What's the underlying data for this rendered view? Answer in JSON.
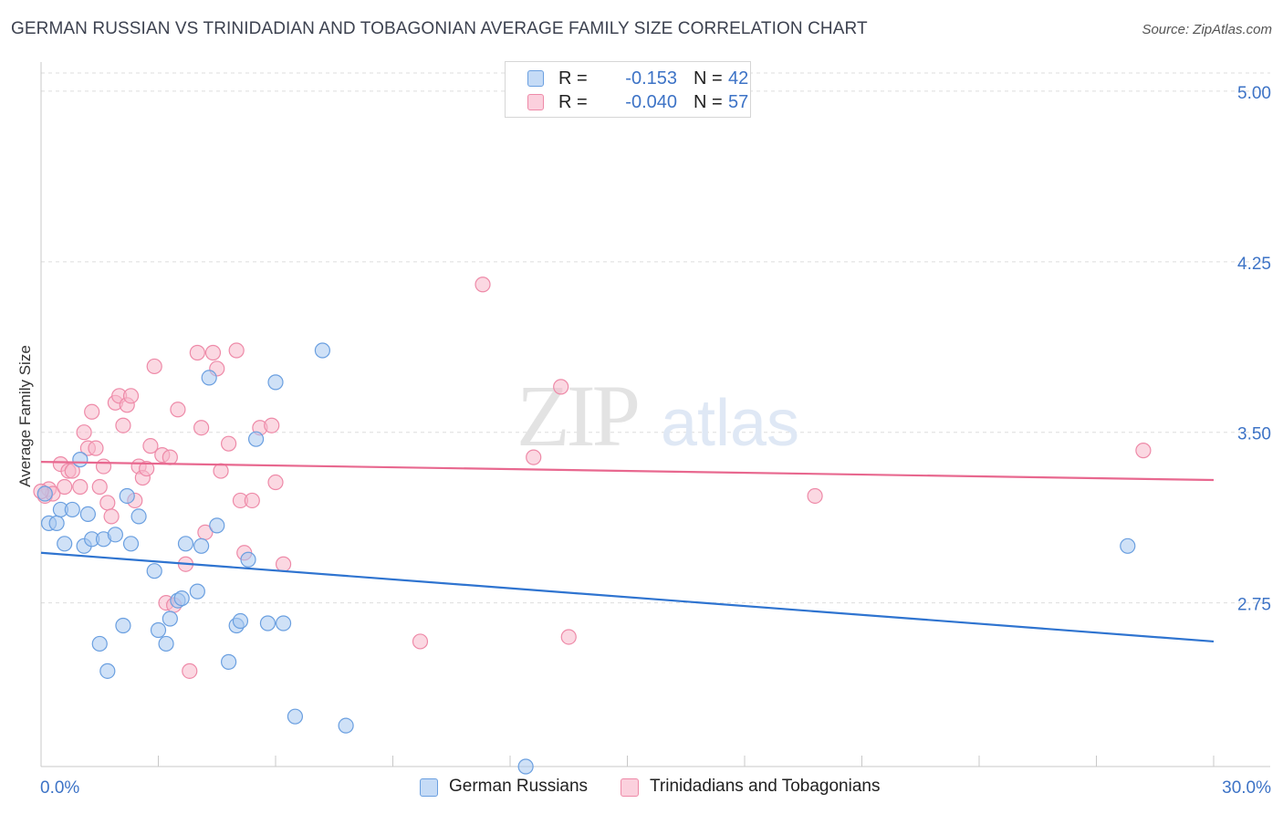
{
  "title": "GERMAN RUSSIAN VS TRINIDADIAN AND TOBAGONIAN AVERAGE FAMILY SIZE CORRELATION CHART",
  "source": "Source: ZipAtlas.com",
  "watermark": {
    "zip": "ZIP",
    "atlas": "atlas"
  },
  "colors": {
    "blue_fill": "#a8c8f0",
    "blue_stroke": "#6a9fe0",
    "blue_line": "#2f74d0",
    "pink_fill": "#f7b8cb",
    "pink_stroke": "#ee8aa8",
    "pink_line": "#e8688f",
    "axis_text": "#3d73c6",
    "grid": "#dddddd"
  },
  "legend": {
    "rows": [
      {
        "r_label": "R =",
        "r_value": "-0.153",
        "n_label": "N =",
        "n_value": "42",
        "color": "blue"
      },
      {
        "r_label": "R =",
        "r_value": "-0.040",
        "n_label": "N =",
        "n_value": "57",
        "color": "pink"
      }
    ]
  },
  "bottom_legend": [
    {
      "label": "German Russians",
      "color": "blue"
    },
    {
      "label": "Trinidadians and Tobagonians",
      "color": "pink"
    }
  ],
  "chart_data": {
    "type": "scatter",
    "title": "GERMAN RUSSIAN VS TRINIDADIAN AND TOBAGONIAN AVERAGE FAMILY SIZE CORRELATION CHART",
    "xlabel": "",
    "ylabel": "Average Family Size",
    "xlim": [
      0,
      30
    ],
    "ylim": [
      2.03,
      5.08
    ],
    "x_tick_labels": [
      "0.0%",
      "30.0%"
    ],
    "y_ticks": [
      2.75,
      3.5,
      4.25,
      5.0
    ],
    "y_tick_labels": [
      "2.75",
      "3.50",
      "4.25",
      "5.00"
    ],
    "grid": true,
    "legend_position": "top-center",
    "series": [
      {
        "name": "German Russians",
        "color": "blue",
        "trend": {
          "x": [
            0,
            30
          ],
          "y": [
            2.97,
            2.58
          ]
        },
        "points": [
          [
            0.2,
            3.1
          ],
          [
            0.4,
            3.1
          ],
          [
            0.5,
            3.16
          ],
          [
            0.6,
            3.01
          ],
          [
            0.8,
            3.16
          ],
          [
            1.0,
            3.38
          ],
          [
            1.1,
            3.0
          ],
          [
            1.2,
            3.14
          ],
          [
            1.3,
            3.03
          ],
          [
            1.5,
            2.57
          ],
          [
            1.6,
            3.03
          ],
          [
            1.7,
            2.45
          ],
          [
            1.9,
            3.05
          ],
          [
            2.1,
            2.65
          ],
          [
            2.2,
            3.22
          ],
          [
            2.3,
            3.01
          ],
          [
            2.5,
            3.13
          ],
          [
            2.9,
            2.89
          ],
          [
            3.0,
            2.63
          ],
          [
            3.2,
            2.57
          ],
          [
            3.3,
            2.68
          ],
          [
            3.5,
            2.76
          ],
          [
            3.6,
            2.77
          ],
          [
            3.7,
            3.01
          ],
          [
            4.0,
            2.8
          ],
          [
            4.1,
            3.0
          ],
          [
            4.3,
            3.74
          ],
          [
            4.5,
            3.09
          ],
          [
            4.8,
            2.49
          ],
          [
            5.0,
            2.65
          ],
          [
            5.1,
            2.67
          ],
          [
            5.3,
            2.94
          ],
          [
            5.5,
            3.47
          ],
          [
            5.8,
            2.66
          ],
          [
            6.0,
            3.72
          ],
          [
            6.2,
            2.66
          ],
          [
            6.5,
            2.25
          ],
          [
            7.2,
            3.86
          ],
          [
            7.8,
            2.21
          ],
          [
            12.4,
            2.03
          ],
          [
            27.8,
            3.0
          ],
          [
            0.1,
            3.23
          ]
        ]
      },
      {
        "name": "Trinidadians and Tobagonians",
        "color": "pink",
        "trend": {
          "x": [
            0,
            30
          ],
          "y": [
            3.37,
            3.29
          ]
        },
        "points": [
          [
            0.1,
            3.22
          ],
          [
            0.2,
            3.25
          ],
          [
            0.3,
            3.23
          ],
          [
            0.5,
            3.36
          ],
          [
            0.6,
            3.26
          ],
          [
            0.7,
            3.33
          ],
          [
            0.8,
            3.33
          ],
          [
            1.0,
            3.26
          ],
          [
            1.1,
            3.5
          ],
          [
            1.2,
            3.43
          ],
          [
            1.3,
            3.59
          ],
          [
            1.4,
            3.43
          ],
          [
            1.5,
            3.26
          ],
          [
            1.6,
            3.35
          ],
          [
            1.7,
            3.19
          ],
          [
            1.8,
            3.13
          ],
          [
            1.9,
            3.63
          ],
          [
            2.0,
            3.66
          ],
          [
            2.1,
            3.53
          ],
          [
            2.2,
            3.62
          ],
          [
            2.3,
            3.66
          ],
          [
            2.4,
            3.2
          ],
          [
            2.5,
            3.35
          ],
          [
            2.6,
            3.3
          ],
          [
            2.7,
            3.34
          ],
          [
            2.8,
            3.44
          ],
          [
            2.9,
            3.79
          ],
          [
            3.1,
            3.4
          ],
          [
            3.2,
            2.75
          ],
          [
            3.3,
            3.39
          ],
          [
            3.4,
            2.74
          ],
          [
            3.5,
            3.6
          ],
          [
            3.7,
            2.92
          ],
          [
            3.8,
            2.45
          ],
          [
            4.0,
            3.85
          ],
          [
            4.1,
            3.52
          ],
          [
            4.2,
            3.06
          ],
          [
            4.4,
            3.85
          ],
          [
            4.5,
            3.78
          ],
          [
            4.6,
            3.33
          ],
          [
            4.8,
            3.45
          ],
          [
            5.0,
            3.86
          ],
          [
            5.1,
            3.2
          ],
          [
            5.2,
            2.97
          ],
          [
            5.4,
            3.2
          ],
          [
            5.6,
            3.52
          ],
          [
            5.9,
            3.53
          ],
          [
            6.0,
            3.28
          ],
          [
            6.2,
            2.92
          ],
          [
            11.3,
            4.15
          ],
          [
            9.7,
            2.58
          ],
          [
            12.6,
            3.39
          ],
          [
            13.3,
            3.7
          ],
          [
            13.5,
            2.6
          ],
          [
            19.8,
            3.22
          ],
          [
            28.2,
            3.42
          ],
          [
            0.0,
            3.24
          ]
        ]
      }
    ]
  }
}
